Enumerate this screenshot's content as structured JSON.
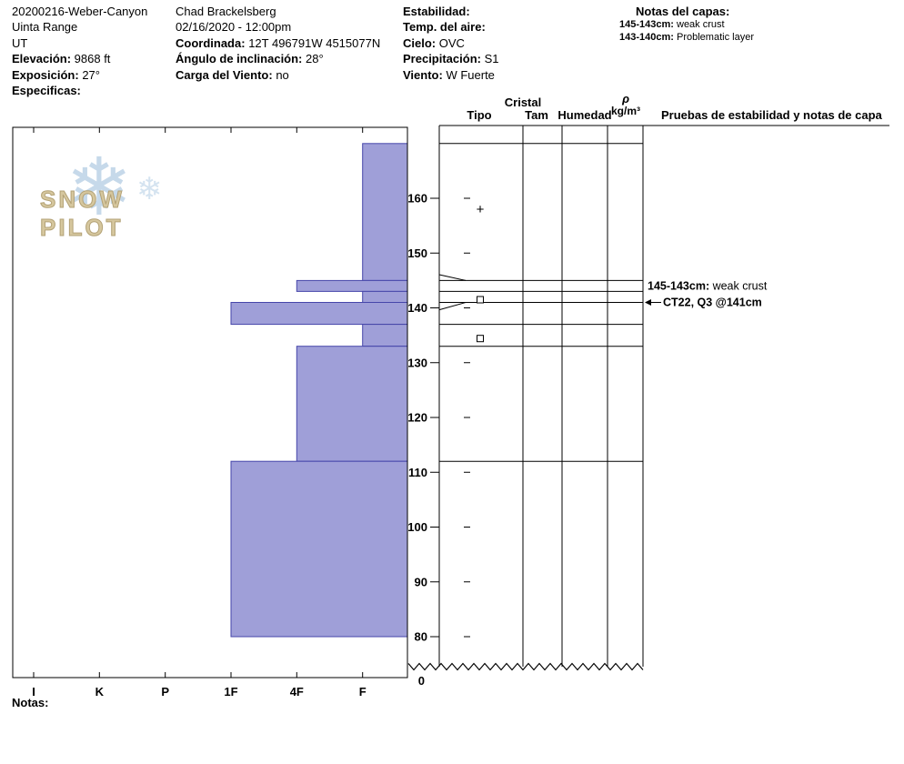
{
  "header": {
    "site": {
      "name": "20200216-Weber-Canyon",
      "range": "Uinta Range",
      "state": "UT",
      "elevation_label": "Elevación:",
      "elevation": "9868 ft",
      "aspect_label": "Exposición:",
      "aspect": "27°",
      "specifics_label": "Especificas:"
    },
    "observer": {
      "name": "Chad Brackelsberg",
      "datetime": "02/16/2020 - 12:00pm",
      "coord_label": "Coordinada:",
      "coord": "12T 496791W 4515077N",
      "slope_label": "Ángulo de inclinación:",
      "slope": "28°",
      "wind_load_label": "Carga del Viento:",
      "wind_load": "no"
    },
    "weather": {
      "stability_label": "Estabilidad:",
      "air_temp_label": "Temp. del aire:",
      "sky_label": "Cielo:",
      "sky": "OVC",
      "precip_label": "Precipitación:",
      "precip": "S1",
      "wind_label": "Viento:",
      "wind": "W Fuerte"
    },
    "layer_notes": {
      "title": "Notas del capas:",
      "notes": [
        {
          "label": "145-143cm:",
          "text": "weak crust"
        },
        {
          "label": "143-140cm:",
          "text": "Problematic layer"
        }
      ]
    }
  },
  "columns": {
    "cristal": "Cristal",
    "tipo": "Tipo",
    "tam": "Tam",
    "humedad": "Humedad",
    "rho": "ρ",
    "rho_units": "kg/m³",
    "tests": "Pruebas de estabilidad y notas de capa"
  },
  "logo": {
    "text": "SNOW PILOT"
  },
  "footer": {
    "notes_label": "Notas:"
  },
  "chart_data": {
    "type": "bar",
    "orientation": "horizontal",
    "title": "Snow pit hardness profile",
    "hardness_axis": {
      "categories": [
        "I",
        "K",
        "P",
        "1F",
        "4F",
        "F"
      ]
    },
    "depth_axis": {
      "units": "cm",
      "surface_cm": 170,
      "ticks": [
        160,
        150,
        140,
        130,
        120,
        110,
        100,
        90,
        80
      ],
      "bottom_label": "0",
      "break_below_cm": 80
    },
    "layers": [
      {
        "top_cm": 170,
        "bottom_cm": 145,
        "hardness": "F"
      },
      {
        "top_cm": 145,
        "bottom_cm": 143,
        "hardness": "4F"
      },
      {
        "top_cm": 143,
        "bottom_cm": 141,
        "hardness": "F"
      },
      {
        "top_cm": 141,
        "bottom_cm": 137,
        "hardness": "1F"
      },
      {
        "top_cm": 137,
        "bottom_cm": 133,
        "hardness": "F"
      },
      {
        "top_cm": 133,
        "bottom_cm": 112,
        "hardness": "4F"
      },
      {
        "top_cm": 112,
        "bottom_cm": 80,
        "hardness": "1F"
      }
    ],
    "grain_symbols": [
      {
        "glyph": "+",
        "name": "new-snow",
        "depth_cm": 158
      },
      {
        "glyph": "□",
        "name": "facets",
        "depth_cm": 141.5
      },
      {
        "glyph": "□",
        "name": "facets",
        "depth_cm": 134.4
      }
    ],
    "annotations": [
      {
        "label": "145-143cm:",
        "text": " weak crust",
        "depth_cm": 144,
        "arrow": false,
        "bold_text": false
      },
      {
        "label": "",
        "text": "CT22, Q3 @141cm",
        "depth_cm": 141,
        "arrow": true,
        "bold_text": true
      }
    ],
    "bar_color": "#9f9fd8",
    "bar_border": "#4646aa",
    "line_color": "#000000"
  }
}
